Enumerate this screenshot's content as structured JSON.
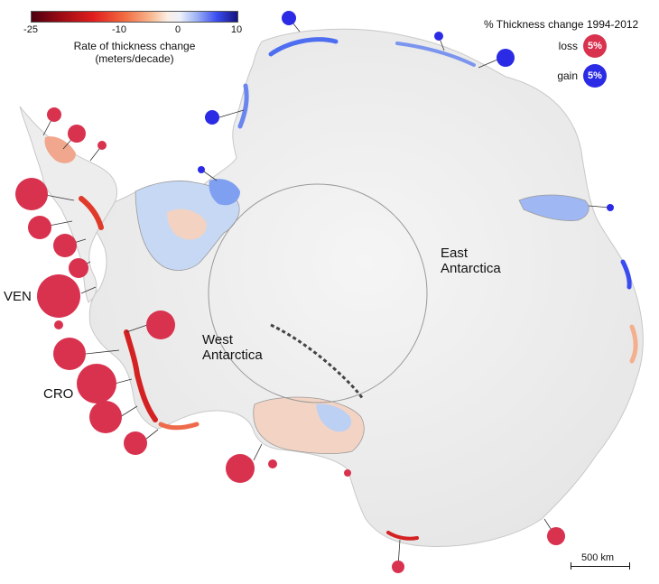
{
  "colorbar": {
    "title_line1": "Rate of thickness change",
    "title_line2": "(meters/decade)",
    "ticks": [
      "-25",
      "-10",
      "0",
      "10"
    ],
    "min": -25,
    "max": 10,
    "tick_values": [
      -25,
      -10,
      0,
      10
    ],
    "colors": {
      "strong_loss": "#4d0010",
      "loss": "#e01e1e",
      "neutral": "#f2f2f2",
      "gain": "#3a4cf0",
      "strong_gain": "#14127e"
    }
  },
  "legend": {
    "title": "% Thickness change 1994-2012",
    "loss_label": "loss",
    "gain_label": "gain",
    "loss_value": "5%",
    "gain_value": "5%",
    "loss_color": "#d8324f",
    "gain_color": "#2b2be6"
  },
  "regions": {
    "east": [
      "East",
      "Antarctica"
    ],
    "west": [
      "West",
      "Antarctica"
    ]
  },
  "shelves": {
    "ven": "VEN",
    "cro": "CRO"
  },
  "scalebar": {
    "label": "500 km"
  },
  "icons": {
    "loss_bubble": "red-circle",
    "gain_bubble": "blue-circle"
  }
}
